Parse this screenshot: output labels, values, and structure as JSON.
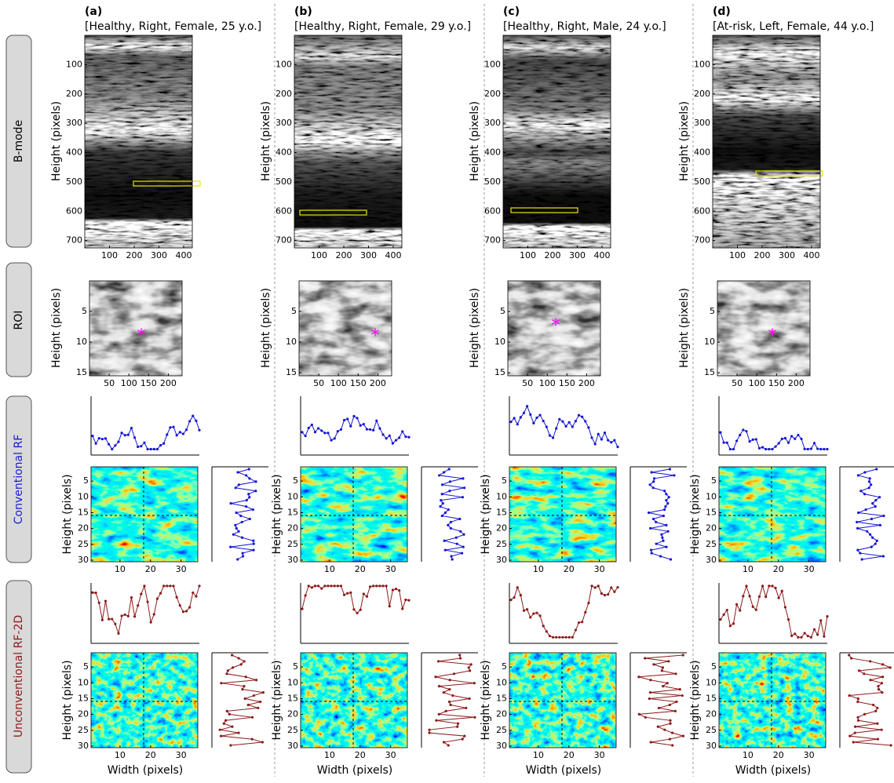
{
  "columns": [
    {
      "label": "(a)",
      "subtitle": "[Healthy, Right, Female, 25 y.o.]"
    },
    {
      "label": "(b)",
      "subtitle": "[Healthy, Right, Female, 29 y.o.]"
    },
    {
      "label": "(c)",
      "subtitle": "[Healthy, Right, Male, 24 y.o.]"
    },
    {
      "label": "(d)",
      "subtitle": "[At-risk, Left, Female, 44 y.o.]"
    }
  ],
  "rows": [
    "B-mode",
    "ROI",
    "Conventional RF",
    "Unconventional RF-2D"
  ],
  "y_label": "Height (pixels)",
  "x_label": "Width (pixels)",
  "marker": "*",
  "bmode": {
    "xlim": [
      0,
      435
    ],
    "ylim": [
      0,
      725
    ],
    "xticks": [
      100,
      200,
      300,
      400
    ],
    "yticks": [
      100,
      200,
      300,
      400,
      500,
      600,
      700
    ]
  },
  "roi": {
    "xlim": [
      0,
      235
    ],
    "ylim": [
      0,
      15.5
    ],
    "xticks": [
      50,
      100,
      150,
      200
    ],
    "yticks": [
      5,
      10,
      15
    ]
  },
  "rf": {
    "xlim": [
      0.5,
      35.5
    ],
    "ylim": [
      0.5,
      30.5
    ],
    "xticks": [
      10,
      20,
      30
    ],
    "yticks": [
      5,
      10,
      15,
      20,
      25,
      30
    ]
  }
}
